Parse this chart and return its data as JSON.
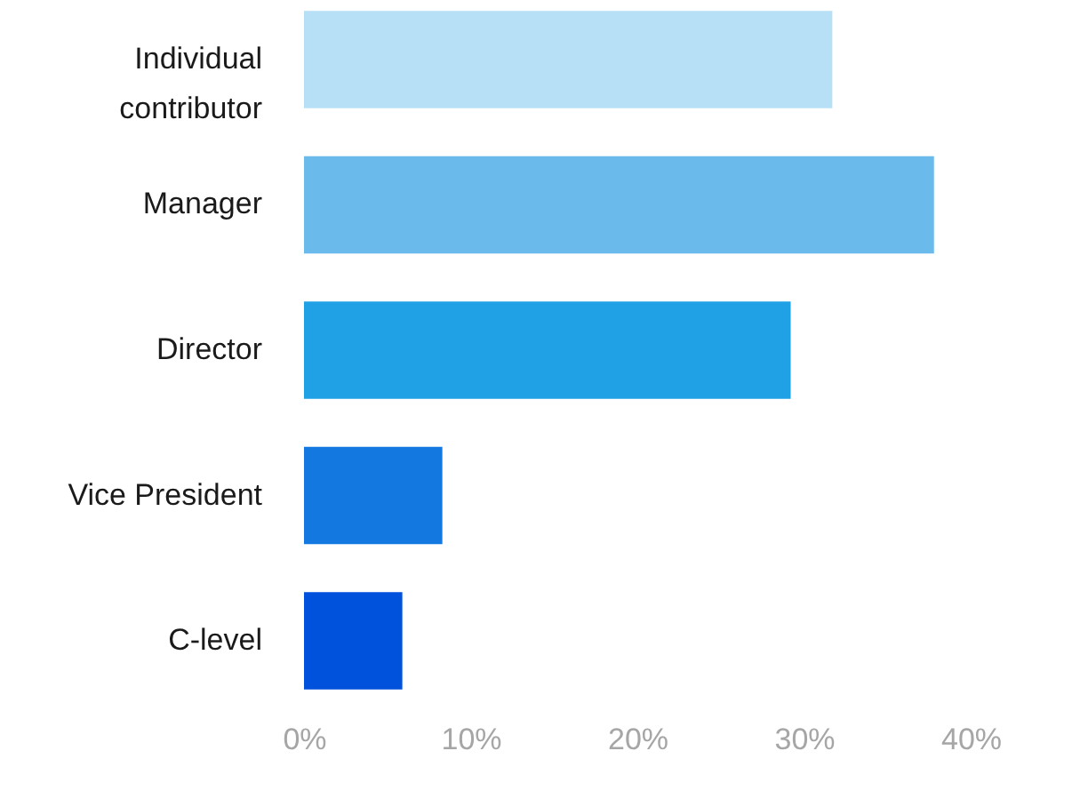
{
  "chart_data": {
    "type": "bar",
    "orientation": "horizontal",
    "categories": [
      "Individual contributor",
      "Manager",
      "Director",
      "Vice President",
      "C-level"
    ],
    "values": [
      31.7,
      37.8,
      29.2,
      8.3,
      5.9
    ],
    "colors": [
      "#b7e0f7",
      "#6abbec",
      "#20a1e6",
      "#1378df",
      "#0051db"
    ],
    "xlim": [
      0,
      40
    ],
    "xticks": [
      {
        "value": 0,
        "label": "0%"
      },
      {
        "value": 10,
        "label": "10%"
      },
      {
        "value": 20,
        "label": "20%"
      },
      {
        "value": 30,
        "label": "30%"
      },
      {
        "value": 40,
        "label": "40%"
      }
    ],
    "grid": false
  }
}
